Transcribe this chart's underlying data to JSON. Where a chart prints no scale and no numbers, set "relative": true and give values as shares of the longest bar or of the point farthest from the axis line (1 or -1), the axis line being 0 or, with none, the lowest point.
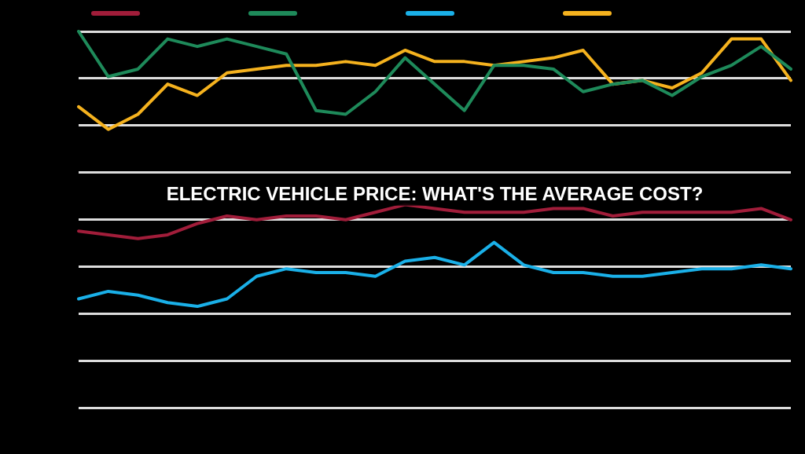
{
  "chart_data": {
    "type": "line",
    "title": "ELECTRIC VEHICLE PRICE: WHAT'S THE AVERAGE COST?",
    "relative": true,
    "grid": "y",
    "marker": "none",
    "line_style": "solid",
    "categories": [
      null,
      null,
      null,
      null,
      null,
      null,
      null,
      null,
      null,
      null,
      null,
      null,
      null,
      null,
      null,
      null,
      null,
      null,
      null,
      null,
      null,
      null,
      null,
      null,
      null
    ],
    "series": [
      {
        "color": "#a11d3a",
        "values": [
          0.47,
          0.46,
          0.45,
          0.46,
          0.49,
          0.51,
          0.5,
          0.51,
          0.51,
          0.5,
          0.52,
          0.54,
          0.53,
          0.52,
          0.52,
          0.52,
          0.53,
          0.53,
          0.51,
          0.52,
          0.52,
          0.52,
          0.52,
          0.53,
          0.5
        ]
      },
      {
        "color": "#1e8a5a",
        "values": [
          1.0,
          0.88,
          0.9,
          0.98,
          0.96,
          0.98,
          0.96,
          0.94,
          0.79,
          0.78,
          0.84,
          0.93,
          0.86,
          0.79,
          0.91,
          0.91,
          0.9,
          0.84,
          0.86,
          0.87,
          0.83,
          0.88,
          0.91,
          0.96,
          0.9
        ]
      },
      {
        "color": "#1ab0e8",
        "values": [
          0.29,
          0.31,
          0.3,
          0.28,
          0.27,
          0.29,
          0.35,
          0.37,
          0.36,
          0.36,
          0.35,
          0.39,
          0.4,
          0.38,
          0.44,
          0.38,
          0.36,
          0.36,
          0.35,
          0.35,
          0.36,
          0.37,
          0.37,
          0.38,
          0.37
        ]
      },
      {
        "color": "#f5b21e",
        "values": [
          0.8,
          0.74,
          0.78,
          0.86,
          0.83,
          0.89,
          0.9,
          0.91,
          0.91,
          0.92,
          0.91,
          0.95,
          0.92,
          0.92,
          0.91,
          0.92,
          0.93,
          0.95,
          0.86,
          0.87,
          0.85,
          0.89,
          0.98,
          0.98,
          0.87
        ]
      }
    ]
  }
}
